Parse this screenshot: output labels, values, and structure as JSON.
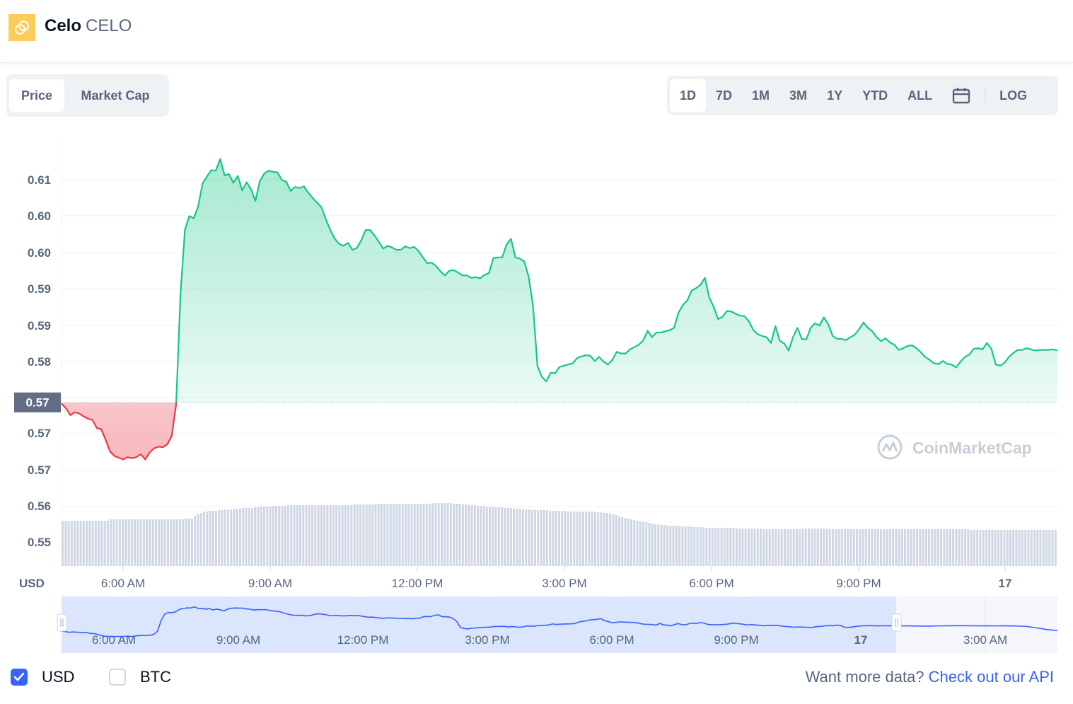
{
  "coin": {
    "name": "Celo",
    "symbol": "CELO",
    "logo_icon": "celo-logo-icon",
    "logo_color": "#fbcc5c"
  },
  "tabs_left": [
    {
      "label": "Price",
      "active": true
    },
    {
      "label": "Market Cap",
      "active": false
    }
  ],
  "tabs_right": [
    {
      "label": "1D",
      "active": true
    },
    {
      "label": "7D",
      "active": false
    },
    {
      "label": "1M",
      "active": false
    },
    {
      "label": "3M",
      "active": false
    },
    {
      "label": "1Y",
      "active": false
    },
    {
      "label": "YTD",
      "active": false
    },
    {
      "label": "ALL",
      "active": false
    }
  ],
  "calendar_icon": "calendar-icon",
  "log_label": "LOG",
  "colors": {
    "up": "#16c784",
    "down": "#ea3943",
    "accent": "#3861fb",
    "volume": "#cfd6e4"
  },
  "chart_data": {
    "type": "line",
    "currency_label": "USD",
    "watermark": "CoinMarketCap",
    "baseline_label": "0.57",
    "y_tick_labels": [
      "0.61",
      "0.60",
      "0.60",
      "0.59",
      "0.59",
      "0.58",
      "0.57",
      "0.57",
      "0.56",
      "0.55"
    ],
    "x_tick_labels": [
      "6:00 AM",
      "9:00 AM",
      "12:00 PM",
      "3:00 PM",
      "6:00 PM",
      "9:00 PM",
      "17"
    ],
    "navigator_labels": [
      "6:00 AM",
      "9:00 AM",
      "12:00 PM",
      "3:00 PM",
      "6:00 PM",
      "9:00 PM",
      "17",
      "3:00 AM"
    ],
    "baseline": 0.5744,
    "ylim": [
      0.5497,
      0.6158
    ],
    "price": [
      0.5742,
      0.5734,
      0.5722,
      0.5727,
      0.5725,
      0.572,
      0.5716,
      0.5714,
      0.57,
      0.5698,
      0.568,
      0.566,
      0.5652,
      0.5649,
      0.5646,
      0.565,
      0.5648,
      0.565,
      0.5655,
      0.5646,
      0.5658,
      0.5665,
      0.5668,
      0.5667,
      0.5672,
      0.5686,
      0.574,
      0.593,
      0.604,
      0.6064,
      0.606,
      0.608,
      0.612,
      0.6132,
      0.6143,
      0.6142,
      0.6162,
      0.6134,
      0.6136,
      0.6121,
      0.6133,
      0.6108,
      0.6122,
      0.611,
      0.609,
      0.6124,
      0.6137,
      0.6142,
      0.614,
      0.6139,
      0.6126,
      0.6123,
      0.6107,
      0.6114,
      0.6112,
      0.6115,
      0.6104,
      0.6095,
      0.6087,
      0.6079,
      0.6058,
      0.604,
      0.6025,
      0.6016,
      0.6013,
      0.6018,
      0.6006,
      0.6009,
      0.6022,
      0.604,
      0.604,
      0.6031,
      0.602,
      0.6008,
      0.6013,
      0.601,
      0.6006,
      0.6006,
      0.6012,
      0.6009,
      0.6011,
      0.6004,
      0.5993,
      0.5983,
      0.5984,
      0.5978,
      0.5969,
      0.5962,
      0.597,
      0.5971,
      0.5967,
      0.5962,
      0.5962,
      0.5958,
      0.5959,
      0.5957,
      0.5963,
      0.5966,
      0.5992,
      0.5993,
      0.5993,
      0.6015,
      0.6025,
      0.5993,
      0.5991,
      0.5986,
      0.596,
      0.591,
      0.5806,
      0.5788,
      0.578,
      0.5795,
      0.5794,
      0.5805,
      0.5807,
      0.5809,
      0.5811,
      0.582,
      0.5823,
      0.5825,
      0.5824,
      0.5815,
      0.5822,
      0.5814,
      0.5809,
      0.5817,
      0.5831,
      0.5828,
      0.5828,
      0.5835,
      0.5839,
      0.5843,
      0.585,
      0.5867,
      0.5856,
      0.5864,
      0.5864,
      0.5866,
      0.5868,
      0.5872,
      0.5898,
      0.5911,
      0.5919,
      0.5936,
      0.594,
      0.5946,
      0.5958,
      0.5924,
      0.5908,
      0.5887,
      0.5891,
      0.5901,
      0.59,
      0.5896,
      0.5893,
      0.5892,
      0.5883,
      0.5868,
      0.5861,
      0.5858,
      0.5856,
      0.5846,
      0.5875,
      0.585,
      0.5845,
      0.5833,
      0.5856,
      0.5872,
      0.5853,
      0.5852,
      0.5872,
      0.588,
      0.5876,
      0.589,
      0.5878,
      0.5858,
      0.5853,
      0.5853,
      0.5851,
      0.5856,
      0.586,
      0.587,
      0.5881,
      0.5872,
      0.5866,
      0.5856,
      0.5849,
      0.5854,
      0.5847,
      0.5843,
      0.5834,
      0.5837,
      0.5841,
      0.5842,
      0.5837,
      0.583,
      0.5822,
      0.5817,
      0.5811,
      0.581,
      0.5815,
      0.581,
      0.5809,
      0.5804,
      0.5814,
      0.5822,
      0.5826,
      0.5836,
      0.5837,
      0.5835,
      0.5846,
      0.5836,
      0.5809,
      0.5807,
      0.5812,
      0.5822,
      0.5829,
      0.5834,
      0.5834,
      0.5837,
      0.5835,
      0.5833,
      0.5834,
      0.5834,
      0.5834,
      0.5835,
      0.5833
    ],
    "volume": [
      64,
      64,
      64,
      64,
      64,
      64,
      64,
      64,
      64,
      64,
      64,
      64,
      64,
      64,
      64,
      64,
      66,
      66,
      66,
      66,
      66,
      66,
      66,
      66,
      66,
      66,
      66,
      66,
      66,
      66,
      66,
      66,
      66,
      66,
      66,
      66,
      66,
      66,
      66,
      66,
      66,
      67,
      67,
      67,
      71,
      74,
      75,
      77,
      77,
      78,
      78,
      78,
      79,
      79,
      80,
      80,
      80,
      81,
      81,
      81,
      82,
      82,
      82,
      82,
      83,
      83,
      84,
      84,
      84,
      84,
      85,
      85,
      85,
      85,
      85,
      86,
      86,
      86,
      86,
      86,
      86,
      86,
      86,
      86,
      86,
      86,
      86,
      86,
      86,
      86,
      86,
      86,
      86,
      86,
      86,
      86,
      86,
      87,
      87,
      87,
      87,
      87,
      87,
      87,
      88,
      88,
      88,
      88,
      88,
      88,
      88,
      88,
      88,
      88,
      88,
      88,
      88,
      88,
      88,
      88,
      88,
      88,
      88,
      89,
      89,
      89,
      89,
      89,
      89,
      89,
      88,
      88,
      88,
      87,
      87,
      87,
      86,
      86,
      85,
      85,
      85,
      84,
      84,
      83,
      83,
      83,
      83,
      82,
      82,
      82,
      81,
      81,
      81,
      80,
      80,
      80,
      79,
      79,
      79,
      79,
      79,
      79,
      78,
      78,
      78,
      78,
      78,
      78,
      77,
      77,
      77,
      77,
      77,
      77,
      77,
      77,
      77,
      77,
      76,
      76,
      75,
      75,
      74,
      73,
      72,
      70,
      69,
      68,
      67,
      66,
      65,
      64,
      63,
      63,
      62,
      61,
      60,
      59,
      59,
      58,
      58,
      57,
      57,
      57,
      57,
      57,
      56,
      56,
      56,
      55,
      55,
      55,
      55,
      55,
      54,
      54,
      54,
      54,
      54,
      54,
      54,
      54,
      54,
      54,
      53,
      53,
      53,
      53,
      53,
      53,
      53,
      53,
      53,
      52,
      52,
      52,
      52,
      52,
      52,
      52,
      52,
      52,
      52,
      52,
      52,
      52,
      53,
      53,
      53,
      53,
      53,
      53,
      53,
      53,
      53,
      52,
      52,
      52,
      52,
      52,
      52,
      52,
      52,
      52,
      52,
      52,
      52,
      52,
      52,
      52,
      52,
      52,
      52,
      52,
      52,
      52,
      52,
      52,
      52,
      52,
      52,
      52,
      52,
      52,
      52,
      52,
      52,
      52,
      52,
      52,
      52,
      52,
      52,
      52,
      52,
      52,
      52,
      52,
      52,
      52,
      52,
      52,
      51,
      51,
      51,
      51,
      51,
      51,
      51,
      51,
      51,
      51,
      51,
      51,
      51,
      51,
      51,
      51,
      51,
      51,
      51,
      51,
      51,
      51,
      51,
      51,
      51,
      51,
      51,
      51,
      51
    ],
    "grid": true
  },
  "footer": {
    "usd_label": "USD",
    "usd_checked": true,
    "btc_label": "BTC",
    "btc_checked": false,
    "api_prefix": "Want more data?",
    "api_link": "Check out our API"
  }
}
